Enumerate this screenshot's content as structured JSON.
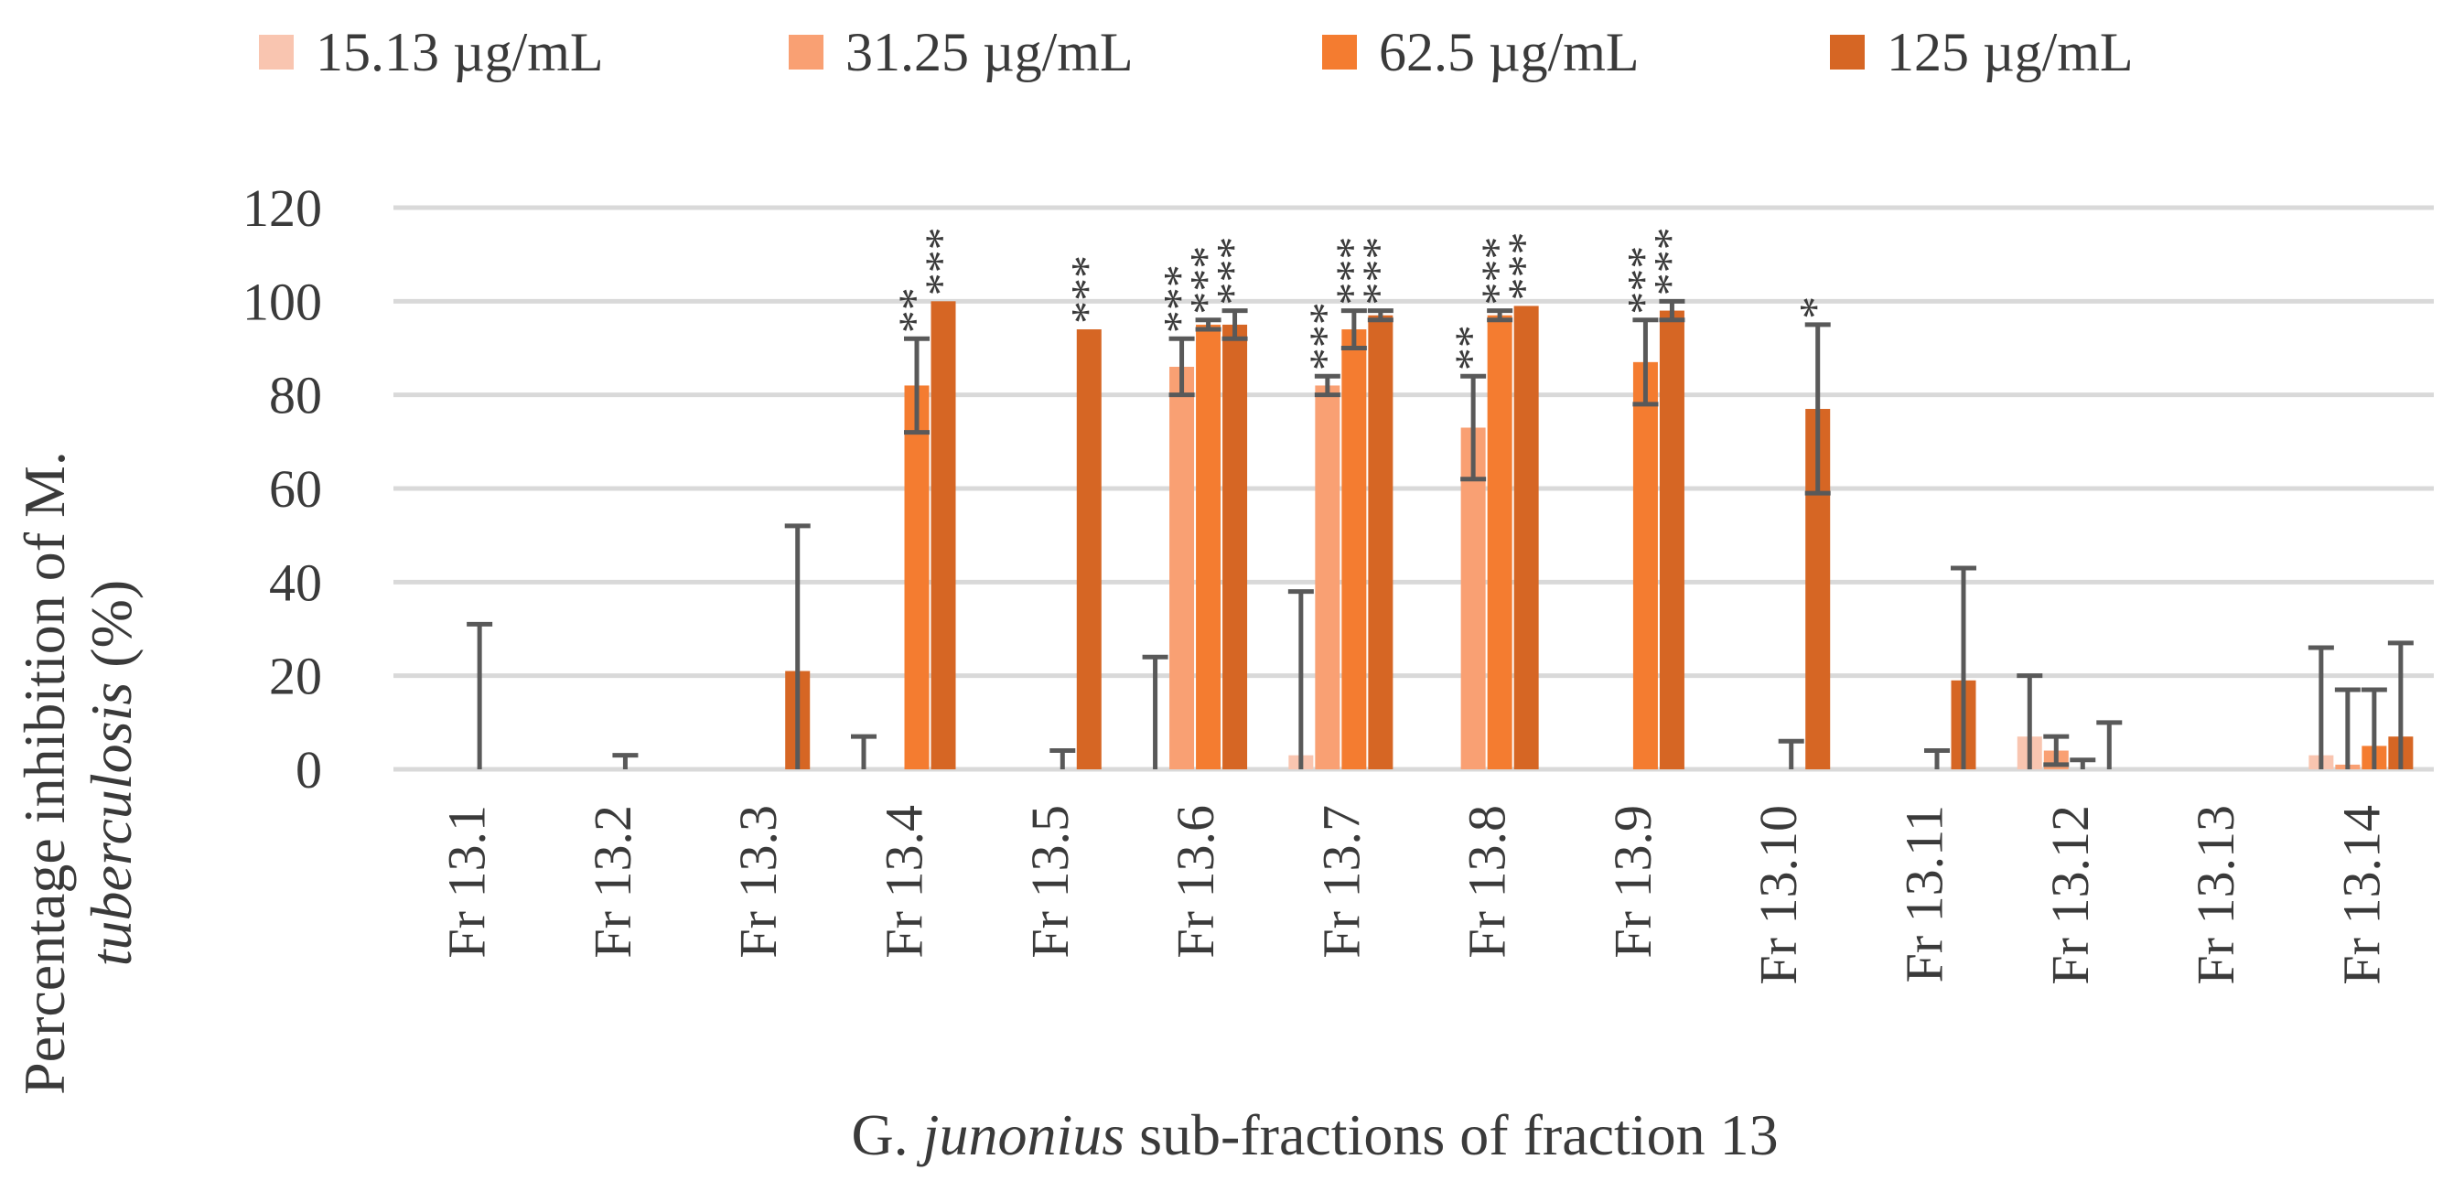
{
  "chart_data": {
    "type": "bar",
    "title": "",
    "xlabel": {
      "pre": "G. ",
      "italic": "junonius",
      "post": " sub-fractions of fraction 13"
    },
    "ylabel": {
      "line1": "Percentage inhibition of M.",
      "line2_italic": "tuberculosis",
      "line2_post": " (%)"
    },
    "ylim": [
      0,
      120
    ],
    "yticks": [
      "0",
      "20",
      "40",
      "60",
      "80",
      "100",
      "120"
    ],
    "grid": true,
    "legend_position": "top",
    "categories": [
      "Fr 13.1",
      "Fr 13.2",
      "Fr 13.3",
      "Fr 13.4",
      "Fr 13.5",
      "Fr 13.6",
      "Fr 13.7",
      "Fr 13.8",
      "Fr 13.9",
      "Fr 13.10",
      "Fr 13.11",
      "Fr 13.12",
      "Fr 13.13",
      "Fr 13.14"
    ],
    "series": [
      {
        "name": "15.13 µg/mL",
        "color": "#f9c5b0",
        "values": [
          0,
          0,
          0,
          0,
          0,
          0,
          3,
          0,
          0,
          0,
          0,
          7,
          0,
          3
        ],
        "errors": [
          0,
          0,
          0,
          7,
          0,
          24,
          35,
          0,
          0,
          0,
          0,
          13,
          0,
          23
        ],
        "stars": [
          "",
          "",
          "",
          "",
          "",
          "",
          "",
          "",
          "",
          "",
          "",
          "",
          "",
          ""
        ]
      },
      {
        "name": "31.25 µg/mL",
        "color": "#f9a073",
        "values": [
          0,
          0,
          0,
          0,
          0,
          86,
          82,
          73,
          0,
          0,
          0,
          4,
          0,
          1
        ],
        "errors": [
          0,
          0,
          0,
          0,
          0,
          6,
          2,
          11,
          0,
          0,
          0,
          3,
          0,
          16
        ],
        "stars": [
          "",
          "",
          "",
          "",
          "",
          "***",
          "***",
          "**",
          "",
          "",
          "",
          "",
          "",
          ""
        ]
      },
      {
        "name": "62.5 µg/mL",
        "color": "#f47c30",
        "values": [
          0,
          0,
          0,
          82,
          0,
          95,
          94,
          97,
          87,
          0,
          0,
          0,
          0,
          5
        ],
        "errors": [
          31,
          3,
          0,
          10,
          4,
          1,
          4,
          1,
          9,
          6,
          4,
          2,
          0,
          12
        ],
        "stars": [
          "",
          "",
          "",
          "**",
          "",
          "***",
          "***",
          "***",
          "***",
          "",
          "",
          "",
          "",
          ""
        ]
      },
      {
        "name": "125 µg/mL",
        "color": "#d66624",
        "values": [
          0,
          0,
          21,
          100,
          94,
          95,
          97,
          99,
          98,
          77,
          19,
          0,
          0,
          7
        ],
        "errors": [
          0,
          0,
          31,
          0,
          0,
          3,
          1,
          0,
          2,
          18,
          24,
          10,
          0,
          20
        ],
        "stars": [
          "",
          "",
          "",
          "***",
          "***",
          "***",
          "***",
          "***",
          "***",
          "*",
          "",
          "",
          "",
          ""
        ]
      }
    ]
  }
}
